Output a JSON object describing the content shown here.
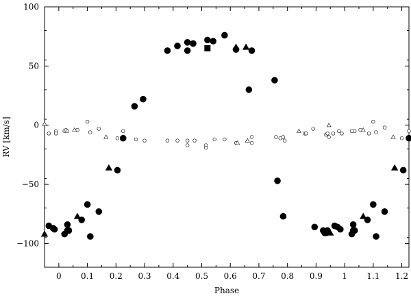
{
  "chart_data": {
    "type": "scatter",
    "title": "",
    "xlabel": "Phase",
    "ylabel": "RV [km/s]",
    "xlim": [
      -0.05,
      1.225
    ],
    "ylim": [
      -120,
      100
    ],
    "xticks": [
      0,
      0.1,
      0.2,
      0.3,
      0.4,
      0.5,
      0.6,
      0.7,
      0.8,
      0.9,
      1,
      1.1,
      1.2
    ],
    "xtick_labels": [
      "0",
      "0.1",
      "0.2",
      "0.3",
      "0.4",
      "0.5",
      "0.6",
      "0.7",
      "0.8",
      "0.9",
      "1",
      "1.1",
      "1.2"
    ],
    "yticks": [
      -100,
      -50,
      0,
      50,
      100
    ],
    "ytick_labels": [
      "−100",
      "−50",
      "0",
      "50",
      "100"
    ],
    "grid": false,
    "legend": "none",
    "series": [
      {
        "marker": "filled-circle",
        "x": [
          -0.035,
          -0.02,
          -0.015,
          0.02,
          0.03,
          0.03,
          0.035,
          0.08,
          0.1,
          0.11,
          0.14,
          0.205,
          0.225,
          0.265,
          0.295,
          0.38,
          0.415,
          0.45,
          0.45,
          0.47,
          0.52,
          0.54,
          0.58,
          0.62,
          0.665,
          0.675,
          0.755,
          0.765,
          0.785,
          0.895,
          0.925,
          0.93,
          0.935,
          0.94,
          0.965,
          0.975,
          0.985,
          1.025,
          1.03,
          1.03,
          1.035,
          1.08,
          1.1,
          1.11,
          1.14,
          1.205,
          1.225
        ],
        "y": [
          -85,
          -87,
          -88,
          -92,
          -84,
          -89,
          -89,
          -80,
          -67,
          -94,
          -73,
          -38,
          -11,
          16,
          22,
          63,
          67,
          70,
          63,
          69,
          72,
          71,
          76,
          64,
          30,
          63,
          38,
          -47,
          -77,
          -86,
          -89,
          -91,
          -91,
          -89,
          -85,
          -86,
          -88,
          -92,
          -84,
          -89,
          -89,
          -80,
          -67,
          -94,
          -73,
          -38,
          -11
        ]
      },
      {
        "marker": "filled-triangle",
        "x": [
          -0.05,
          0.065,
          0.175,
          0.62,
          0.655,
          0.95,
          1.065,
          1.175
        ],
        "y": [
          -92,
          -77,
          -36,
          66,
          66,
          -91,
          -77,
          -36
        ]
      },
      {
        "marker": "filled-square",
        "x": [
          0.52
        ],
        "y": [
          65
        ]
      },
      {
        "marker": "open-circle",
        "x": [
          -0.035,
          -0.01,
          -0.01,
          0.02,
          0.025,
          0.03,
          0.065,
          0.1,
          0.11,
          0.14,
          0.205,
          0.225,
          0.225,
          0.27,
          0.3,
          0.38,
          0.415,
          0.45,
          0.45,
          0.475,
          0.515,
          0.515,
          0.545,
          0.58,
          0.62,
          0.675,
          0.675,
          0.76,
          0.775,
          0.785,
          0.79,
          0.86,
          0.865,
          0.89,
          0.935,
          0.94,
          0.945,
          0.96,
          0.98,
          0.99,
          1.025,
          1.035,
          1.055,
          1.085,
          1.1,
          1.11,
          1.14,
          1.2,
          1.225
        ],
        "y": [
          -7,
          -5,
          -7,
          -5,
          -4,
          -5,
          -4,
          3,
          -6,
          -3,
          -11,
          -5,
          -11,
          -12,
          -13,
          -13,
          -13,
          -17,
          -13,
          -13,
          -17,
          -19,
          -12,
          -12,
          -15,
          -10,
          -15,
          -10,
          -11,
          -10,
          -13,
          -7,
          -7,
          -3,
          -8,
          -7,
          -10,
          -7,
          -5,
          -7,
          -5,
          -5,
          -4,
          -7,
          3,
          -6,
          -2,
          -11,
          -5
        ]
      },
      {
        "marker": "open-triangle",
        "x": [
          -0.05,
          0.055,
          0.165,
          0.625,
          0.66,
          0.84,
          0.945,
          1.065,
          1.17
        ],
        "y": [
          1,
          -4,
          -10,
          -15,
          -13,
          -5,
          0,
          -4,
          -10
        ]
      }
    ]
  }
}
